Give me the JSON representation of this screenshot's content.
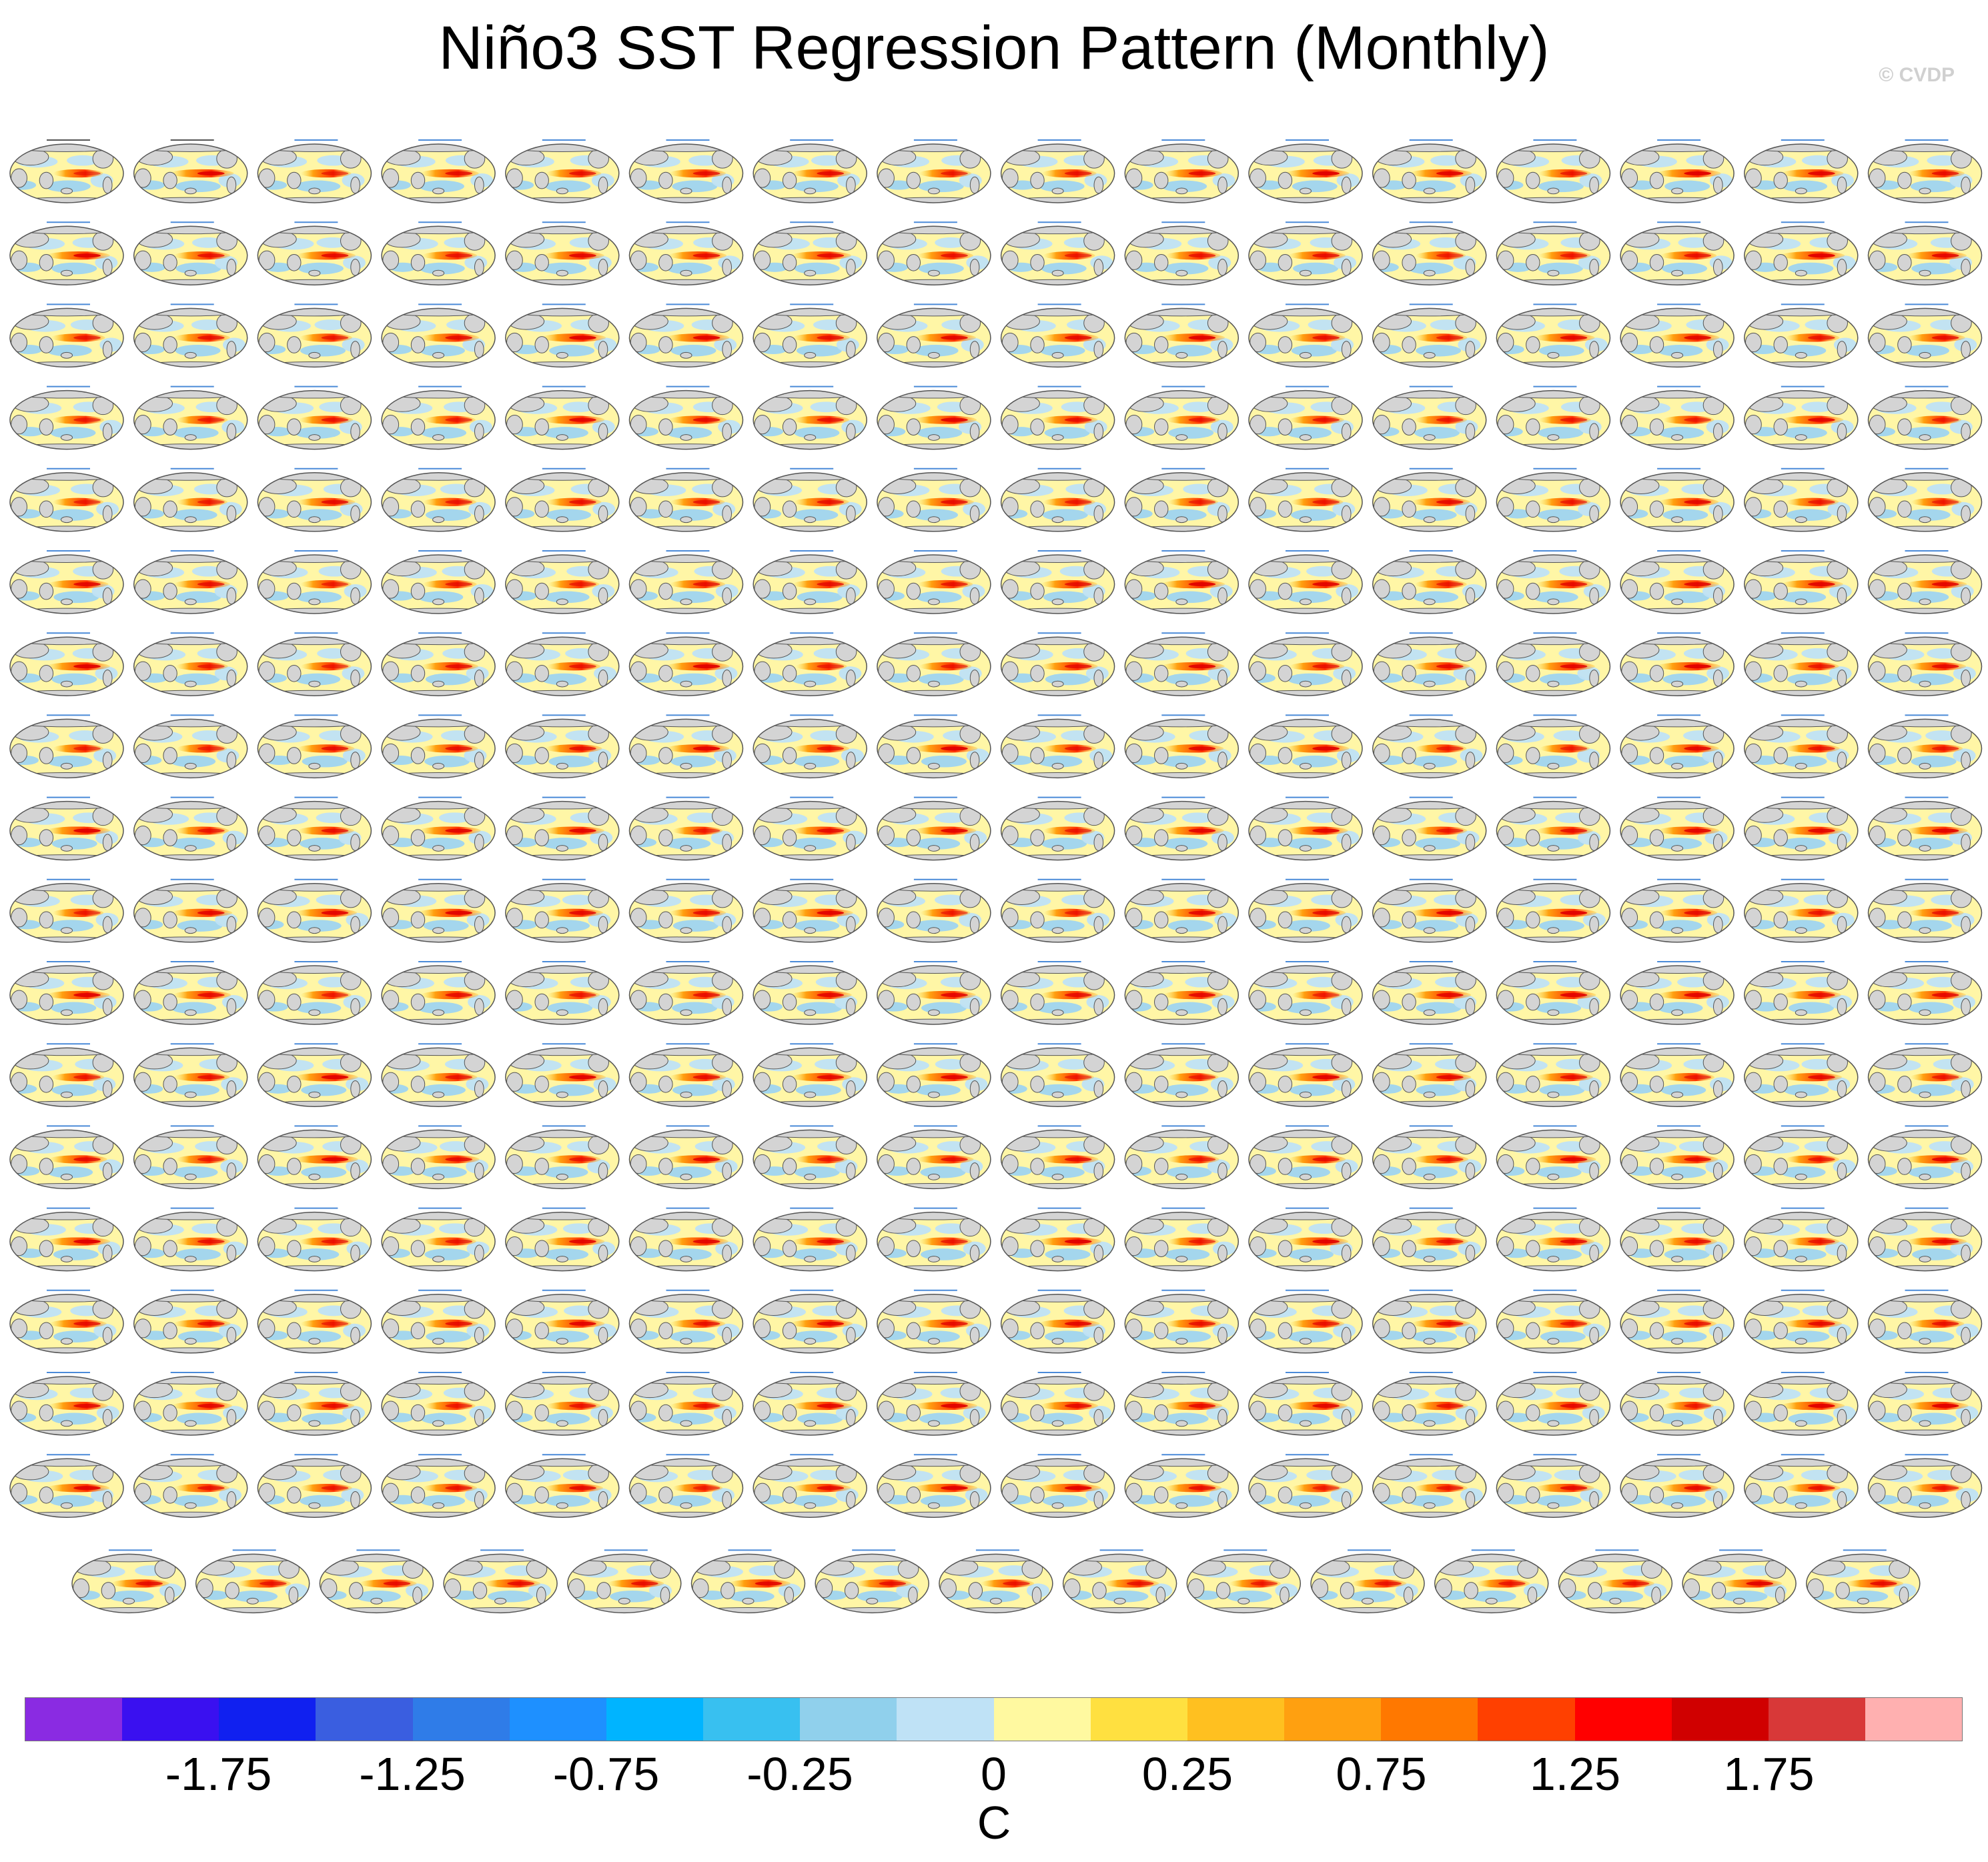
{
  "title": "Niño3 SST Regression Pattern (Monthly)",
  "watermark": "© CVDP",
  "chart_data": {
    "type": "heatmap",
    "panel_grid": {
      "full_rows": 17,
      "columns": 16,
      "last_row_panels": 15
    },
    "panel_titles_legible": [
      "ERSST v5",
      "HadISST"
    ],
    "panel_period_label_first": "1950-2022",
    "panel_period_label_others": "2027-2099",
    "colorbar": {
      "unit": "C",
      "colors": [
        "#8a2be2",
        "#3a10f0",
        "#1020f0",
        "#3a5ee0",
        "#2f7ce8",
        "#1e90ff",
        "#00b4ff",
        "#38c0f0",
        "#90d0ec",
        "#bfe2f6",
        "#fff9a0",
        "#ffe040",
        "#ffc020",
        "#ffa010",
        "#ff7800",
        "#ff4000",
        "#ff0000",
        "#d00000",
        "#d83838",
        "#ffb0b0"
      ],
      "bounds": [
        -2.0,
        -1.75,
        -1.5,
        -1.25,
        -1.0,
        -0.75,
        -0.5,
        -0.25,
        -0.1,
        0,
        0.1,
        0.25,
        0.5,
        0.75,
        1.0,
        1.25,
        1.5,
        1.75,
        2.0
      ],
      "tick_labels": [
        "-1.75",
        "-1.25",
        "-0.75",
        "-0.25",
        "0",
        "0.25",
        "0.75",
        "1.25",
        "1.75"
      ],
      "tick_values": [
        -1.75,
        -1.25,
        -0.75,
        -0.25,
        0,
        0.25,
        0.75,
        1.25,
        1.75
      ]
    }
  }
}
